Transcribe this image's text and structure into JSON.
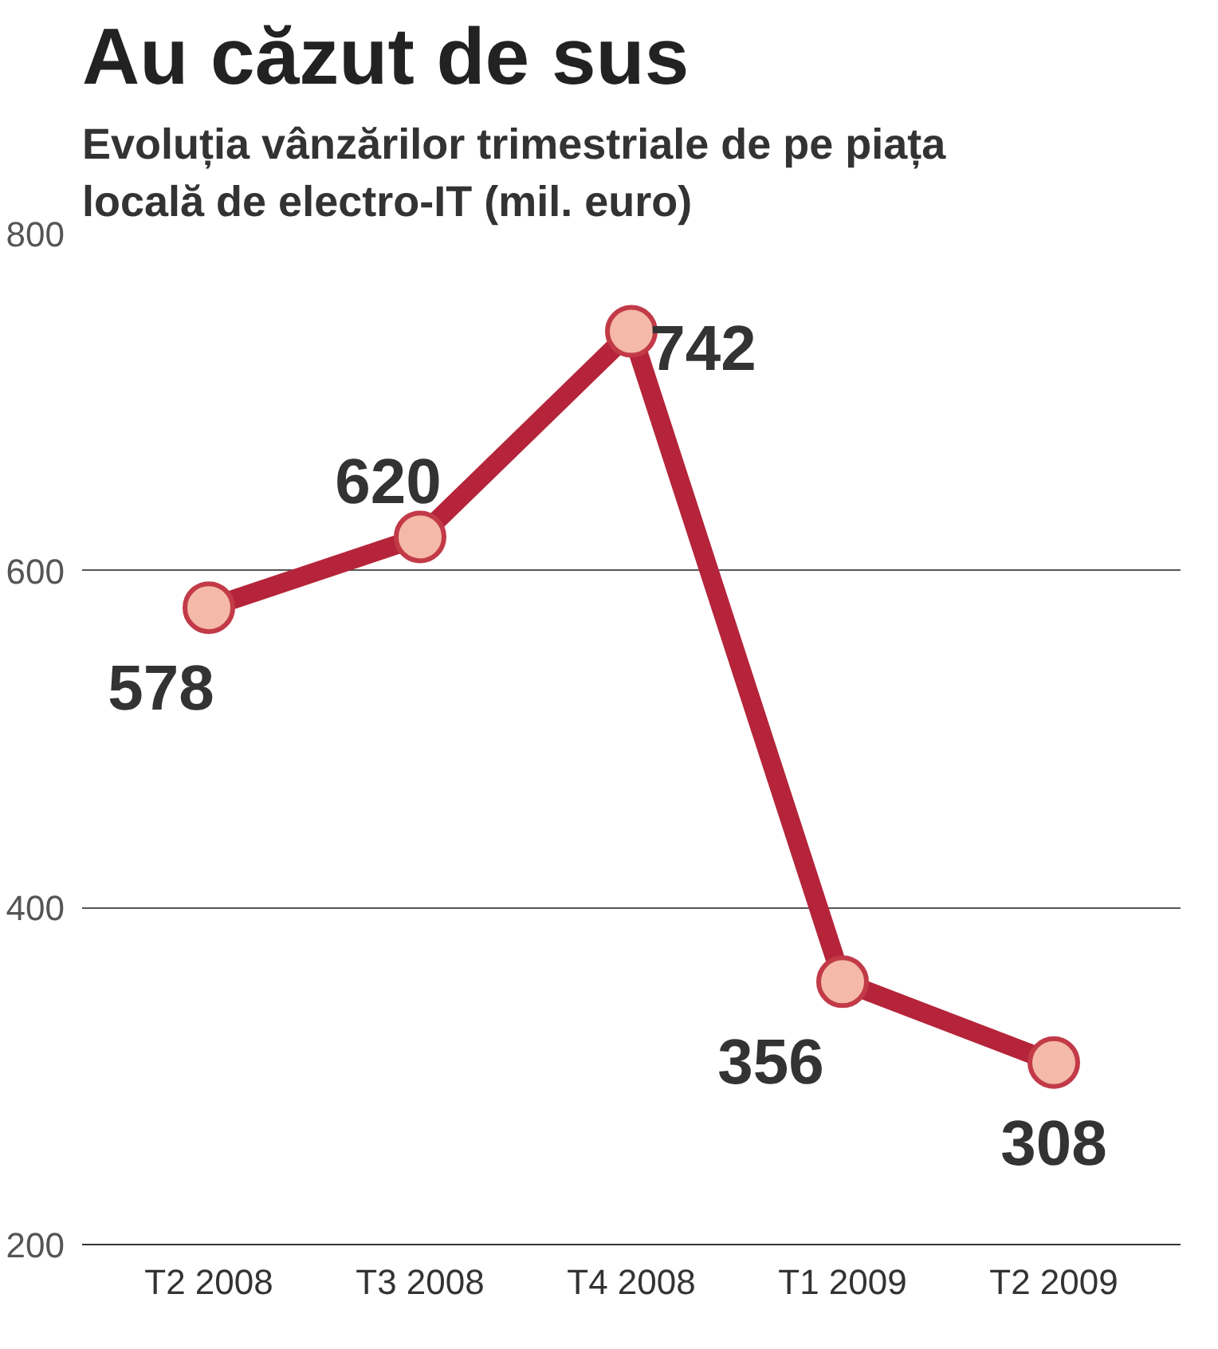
{
  "chart_data": {
    "type": "line",
    "title": "Au căzut de sus",
    "subtitle": "Evoluția vânzărilor trimestriale de pe piața\nlocală de electro-IT (mil. euro)",
    "categories": [
      "T2 2008",
      "T3 2008",
      "T4 2008",
      "T1 2009",
      "T2 2009"
    ],
    "series": [
      {
        "color": "#b5243a",
        "values": [
          578,
          620,
          742,
          356,
          308
        ]
      }
    ],
    "ylim": [
      200,
      800
    ],
    "yticks": [
      200,
      400,
      600,
      800
    ],
    "grid": "y",
    "marker": "circle",
    "line_style": "solid",
    "data_labels": true
  }
}
